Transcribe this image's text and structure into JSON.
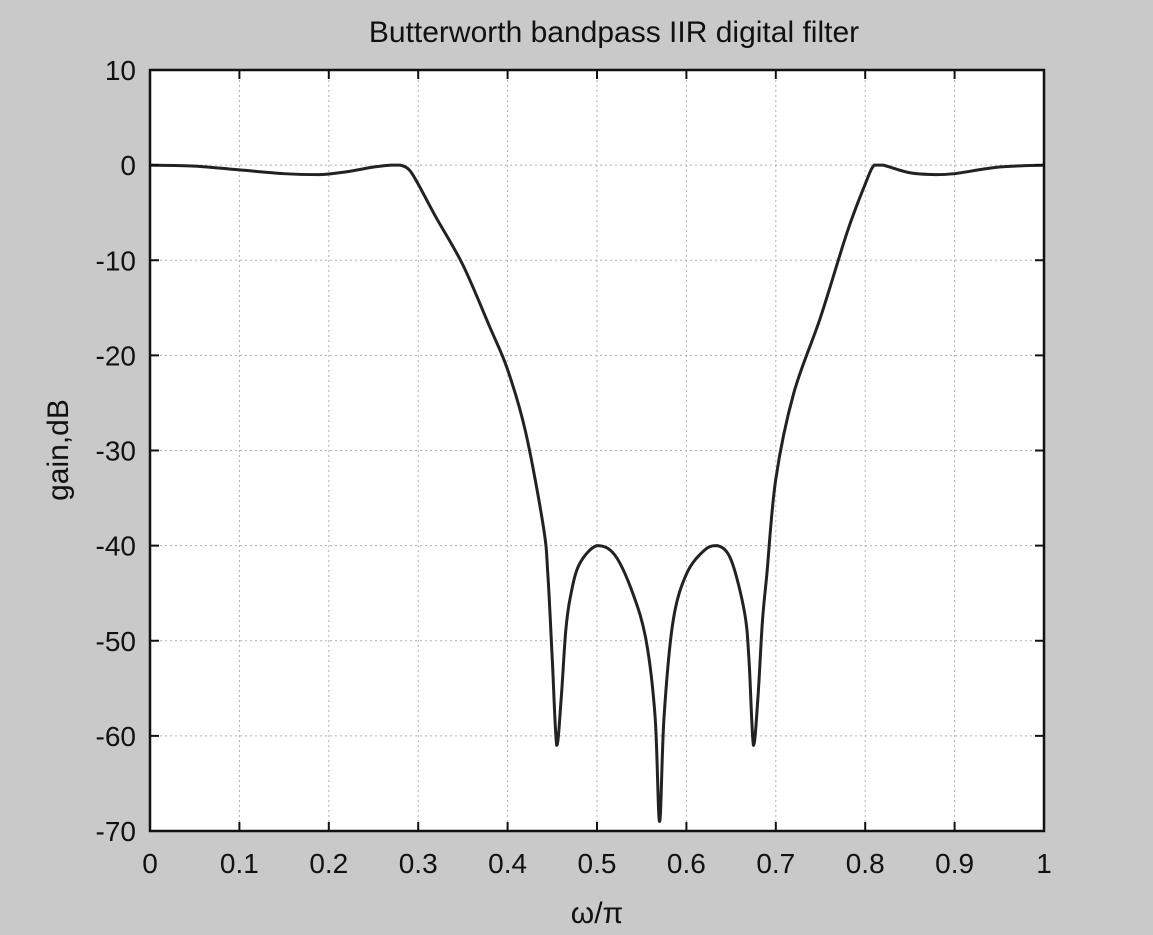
{
  "chart_data": {
    "type": "line",
    "title": "Butterworth bandpass IIR digital filter",
    "xlabel": "ω/π",
    "ylabel": "gain,dB",
    "xlim": [
      0,
      1
    ],
    "ylim": [
      -70,
      10
    ],
    "xticks": [
      0,
      0.1,
      0.2,
      0.3,
      0.4,
      0.5,
      0.6,
      0.7,
      0.8,
      0.9,
      1
    ],
    "xtick_labels": [
      "0",
      "0.1",
      "0.2",
      "0.3",
      "0.4",
      "0.5",
      "0.6",
      "0.7",
      "0.8",
      "0.9",
      "1"
    ],
    "yticks": [
      10,
      0,
      -10,
      -20,
      -30,
      -40,
      -50,
      -60,
      -70
    ],
    "ytick_labels": [
      "10",
      "0",
      "-10",
      "-20",
      "-30",
      "-40",
      "-50",
      "-60",
      "-70"
    ],
    "grid": true,
    "colors": {
      "background": "#c9c9c9",
      "plot_area": "#ffffff",
      "line": "#222222",
      "grid": "#b0b0b0"
    },
    "series": [
      {
        "x": [
          0,
          0.05,
          0.1,
          0.15,
          0.19,
          0.22,
          0.25,
          0.27,
          0.28,
          0.29,
          0.3,
          0.32,
          0.35,
          0.38,
          0.4,
          0.42,
          0.44,
          0.445,
          0.45,
          0.455,
          0.46,
          0.465,
          0.47,
          0.48,
          0.5,
          0.52,
          0.54,
          0.555,
          0.565,
          0.57,
          0.575,
          0.585,
          0.6,
          0.62,
          0.635,
          0.65,
          0.665,
          0.67,
          0.675,
          0.68,
          0.685,
          0.69,
          0.7,
          0.72,
          0.75,
          0.78,
          0.8,
          0.81,
          0.82,
          0.85,
          0.88,
          0.9,
          0.95,
          1
        ],
        "y": [
          0,
          -0.1,
          -0.5,
          -0.9,
          -1.0,
          -0.7,
          -0.2,
          0,
          0,
          -0.5,
          -2,
          -5.5,
          -10.5,
          -17,
          -21.5,
          -28,
          -38,
          -43,
          -52,
          -61,
          -56,
          -49,
          -45.5,
          -42,
          -40,
          -41,
          -45,
          -50,
          -58,
          -69,
          -58,
          -48,
          -43,
          -40.5,
          -40,
          -41.5,
          -47,
          -52,
          -61,
          -56,
          -48,
          -43,
          -33,
          -24,
          -16,
          -7,
          -2,
          0,
          0,
          -0.8,
          -1.0,
          -0.9,
          -0.2,
          0
        ]
      }
    ]
  }
}
